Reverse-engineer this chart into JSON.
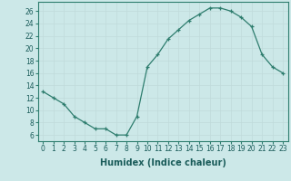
{
  "x": [
    0,
    1,
    2,
    3,
    4,
    5,
    6,
    7,
    8,
    9,
    10,
    11,
    12,
    13,
    14,
    15,
    16,
    17,
    18,
    19,
    20,
    21,
    22,
    23
  ],
  "y": [
    13,
    12,
    11,
    9,
    8,
    7,
    7,
    6,
    6,
    9,
    17,
    19,
    21.5,
    23,
    24.5,
    25.5,
    26.5,
    26.5,
    26,
    25,
    23.5,
    19,
    17,
    16
  ],
  "line_color": "#2e7d6e",
  "marker": "+",
  "xlabel": "Humidex (Indice chaleur)",
  "xlim": [
    -0.5,
    23.5
  ],
  "ylim": [
    5,
    27.5
  ],
  "yticks": [
    6,
    8,
    10,
    12,
    14,
    16,
    18,
    20,
    22,
    24,
    26
  ],
  "xticks": [
    0,
    1,
    2,
    3,
    4,
    5,
    6,
    7,
    8,
    9,
    10,
    11,
    12,
    13,
    14,
    15,
    16,
    17,
    18,
    19,
    20,
    21,
    22,
    23
  ],
  "bg_color": "#cce8e8",
  "grid_major_color": "#c0dada",
  "grid_minor_color": "#d8ecec",
  "tick_label_fontsize": 5.5,
  "xlabel_fontsize": 7.0,
  "spine_color": "#2e7d6e",
  "tick_color": "#2e7d6e",
  "label_color": "#1a5c5a"
}
